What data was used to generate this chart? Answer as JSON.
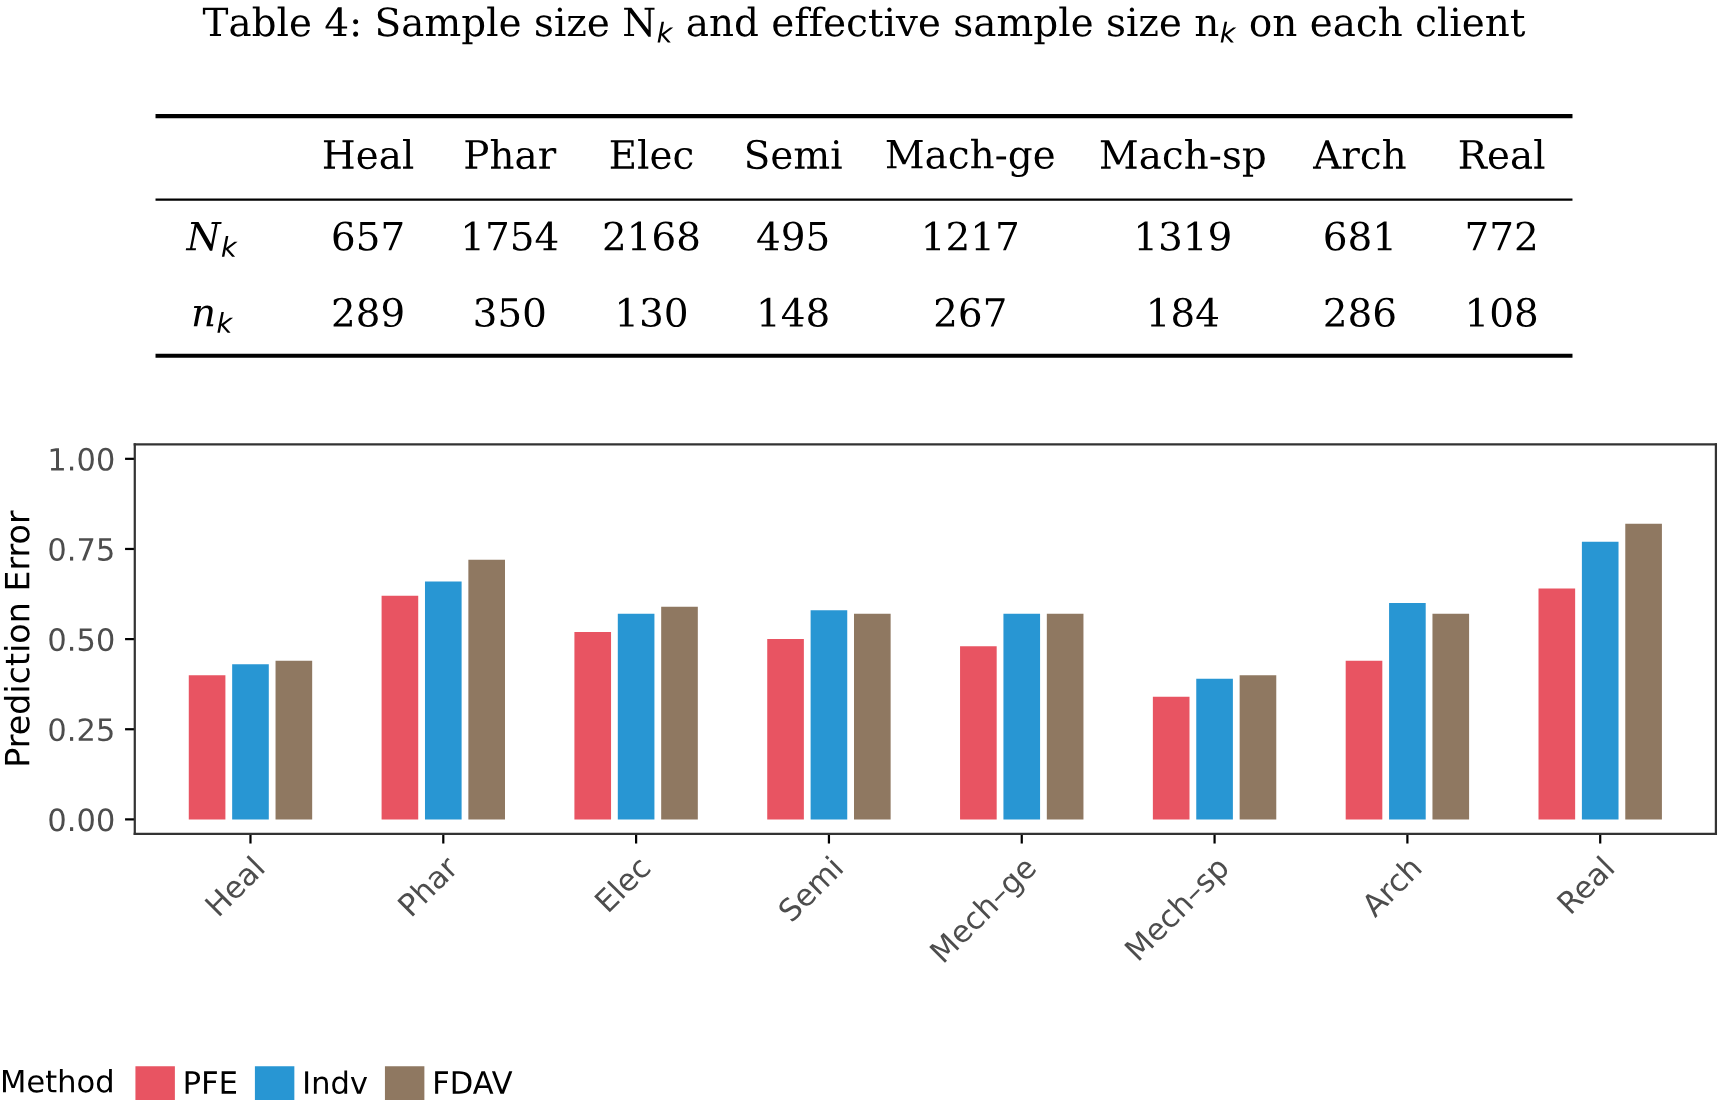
{
  "chart_data": [
    {
      "type": "other",
      "title": "Table 4: Sample size N$_{k}$ and effective sample size n$_{k}$ on each client",
      "categories": [
        "Heal",
        "Phar",
        "Elec",
        "Semi",
        "Mach-ge",
        "Mach-sp",
        "Arch",
        "Real"
      ],
      "data_labels": true,
      "series": [
        {
          "name": "N$_{k}$",
          "values": [
            657,
            1754,
            2168,
            495,
            1217,
            1319,
            681,
            772
          ]
        },
        {
          "name": "n$_{k}$",
          "values": [
            289,
            350,
            130,
            148,
            267,
            184,
            286,
            108
          ]
        }
      ]
    },
    {
      "type": "bar",
      "ylabel": "Prediction Error",
      "categories": [
        "Heal",
        "Phar",
        "Elec",
        "Semi",
        "Mech–ge",
        "Mech–sp",
        "Arch",
        "Real"
      ],
      "ylim": [
        -0.04,
        1.04
      ],
      "yticks": [
        {
          "value": 0,
          "label": "0.00"
        },
        {
          "value": 0.25,
          "label": "0.25"
        },
        {
          "value": 0.5,
          "label": "0.50"
        },
        {
          "value": 0.75,
          "label": "0.75"
        },
        {
          "value": 1,
          "label": "1.00"
        }
      ],
      "legend": "bottom",
      "legend_title": "Method",
      "series": [
        {
          "name": "PFE",
          "color": "#e85462",
          "values": [
            0.4,
            0.62,
            0.52,
            0.5,
            0.48,
            0.34,
            0.44,
            0.64
          ]
        },
        {
          "name": "Indv",
          "color": "#2896d3",
          "values": [
            0.43,
            0.66,
            0.57,
            0.58,
            0.57,
            0.39,
            0.6,
            0.77
          ]
        },
        {
          "name": "FDAV",
          "color": "#8f7861",
          "values": [
            0.44,
            0.72,
            0.59,
            0.57,
            0.57,
            0.4,
            0.57,
            0.82
          ]
        }
      ]
    }
  ]
}
